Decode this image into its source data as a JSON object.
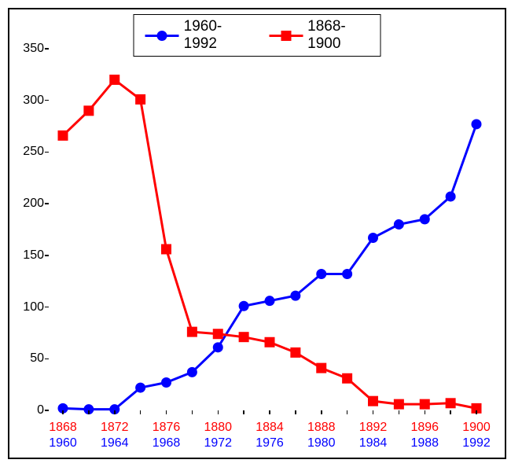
{
  "chart": {
    "type": "line",
    "background_color": "#ffffff",
    "border_color": "#000000",
    "legend": {
      "position": "top-center",
      "border_color": "#000000",
      "fontsize": 19,
      "items": [
        {
          "label": "1960-1992",
          "color": "#0000ff",
          "marker": "circle"
        },
        {
          "label": "1868-1900",
          "color": "#ff0000",
          "marker": "square"
        }
      ]
    },
    "y_axis": {
      "min": 0,
      "max": 350,
      "tick_step": 50,
      "label_fontsize": 16,
      "label_color": "#000000"
    },
    "x_axis": {
      "indices": [
        0,
        1,
        2,
        3,
        4,
        5,
        6,
        7,
        8,
        9,
        10,
        11,
        12,
        13,
        14,
        15,
        16
      ],
      "major_positions": [
        0,
        2,
        4,
        6,
        8,
        10,
        12,
        14,
        16
      ],
      "labels_top": [
        "1868",
        "1872",
        "1876",
        "1880",
        "1884",
        "1888",
        "1892",
        "1896",
        "1900"
      ],
      "labels_bottom": [
        "1960",
        "1964",
        "1968",
        "1972",
        "1976",
        "1980",
        "1984",
        "1988",
        "1992"
      ],
      "label_top_color": "#ff0000",
      "label_bottom_color": "#0000ff",
      "label_fontsize": 16
    },
    "series": [
      {
        "name": "1960-1992",
        "color": "#0000ff",
        "marker": "circle",
        "marker_size": 13,
        "line_width": 3,
        "values": [
          2,
          1,
          1,
          22,
          27,
          37,
          61,
          101,
          106,
          111,
          132,
          132,
          167,
          180,
          185,
          207,
          277
        ]
      },
      {
        "name": "1868-1900",
        "color": "#ff0000",
        "marker": "square",
        "marker_size": 13,
        "line_width": 3,
        "values": [
          266,
          290,
          320,
          301,
          156,
          76,
          74,
          71,
          66,
          56,
          41,
          31,
          9,
          6,
          6,
          7,
          2
        ]
      }
    ]
  }
}
